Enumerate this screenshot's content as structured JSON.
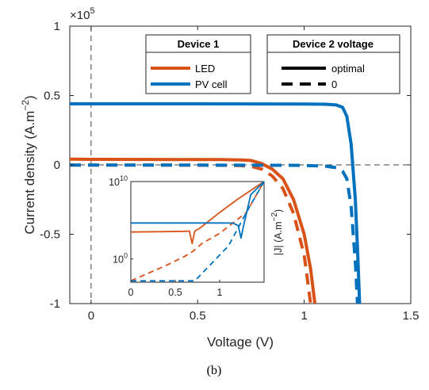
{
  "chart_data": {
    "type": "line",
    "xlabel": "Voltage (V)",
    "ylabel": "Current density (A.m",
    "ylabel_exp": "−2",
    "ylabel_end": ")",
    "y_multiplier": "×10",
    "y_multiplier_exp": "5",
    "xlim": [
      -0.1,
      1.5
    ],
    "ylim": [
      -100000,
      100000
    ],
    "x_ticks": [
      0,
      0.5,
      1,
      1.5
    ],
    "x_tick_labels": [
      "0",
      "0.5",
      "1",
      "1.5"
    ],
    "y_ticks": [
      -100000,
      -50000,
      0,
      50000,
      100000
    ],
    "y_tick_labels": [
      "-1",
      "-0.5",
      "0",
      "0.5",
      "1"
    ],
    "reference_lines": {
      "x": 0,
      "y": 0,
      "style": "dashed"
    },
    "series": [
      {
        "name": "LED",
        "device2_voltage": "optimal",
        "style": "solid",
        "x": [
          -0.1,
          0.0,
          0.4,
          0.6,
          0.7,
          0.75,
          0.8,
          0.85,
          0.9,
          0.95,
          1.0,
          1.03,
          1.05
        ],
        "y": [
          4200,
          4000,
          3900,
          3800,
          3600,
          3200,
          1000,
          -3000,
          -10000,
          -25000,
          -50000,
          -75000,
          -100000
        ]
      },
      {
        "name": "LED",
        "device2_voltage": "0",
        "style": "dashed",
        "x": [
          -0.1,
          0.0,
          0.4,
          0.6,
          0.7,
          0.75,
          0.8,
          0.85,
          0.9,
          0.95,
          1.0,
          1.03
        ],
        "y": [
          -200,
          -200,
          -200,
          -300,
          -500,
          -1000,
          -3000,
          -8000,
          -17000,
          -35000,
          -65000,
          -100000
        ]
      },
      {
        "name": "PV cell",
        "device2_voltage": "optimal",
        "style": "solid",
        "x": [
          -0.1,
          0.0,
          0.5,
          1.0,
          1.1,
          1.15,
          1.18,
          1.2,
          1.22,
          1.24,
          1.25,
          1.26
        ],
        "y": [
          44000,
          44000,
          44000,
          43900,
          43700,
          43200,
          41500,
          35000,
          15000,
          -25000,
          -60000,
          -100000
        ]
      },
      {
        "name": "PV cell",
        "device2_voltage": "0",
        "style": "dashed",
        "x": [
          -0.1,
          0.0,
          0.5,
          0.9,
          1.0,
          1.1,
          1.15,
          1.18,
          1.2,
          1.22,
          1.24,
          1.25
        ],
        "y": [
          -200,
          -200,
          -200,
          -300,
          -400,
          -900,
          -2000,
          -4500,
          -10000,
          -30000,
          -70000,
          -100000
        ]
      }
    ],
    "legend_device": {
      "title": "Device 1",
      "entries": [
        "LED",
        "PV cell"
      ],
      "colors": [
        "#D95319",
        "#0072BD"
      ]
    },
    "legend_voltage": {
      "title": "Device 2 voltage",
      "entries": [
        "optimal",
        "0"
      ],
      "styles": [
        "solid",
        "dashed"
      ]
    },
    "inset": {
      "type": "line",
      "ylabel": "|J| (A.m",
      "ylabel_exp": "−2",
      "ylabel_end": ")",
      "yscale": "log",
      "xlim": [
        0,
        1.5
      ],
      "ylim": [
        0.001,
        10000000000.0
      ],
      "x_ticks": [
        0,
        0.5,
        1
      ],
      "x_tick_labels": [
        "0",
        "0.5",
        "1"
      ],
      "y_ticks": [
        1,
        10000000000.0
      ],
      "y_tick_base": "10",
      "y_tick_exps": [
        "0",
        "10"
      ],
      "series": [
        {
          "name": "LED",
          "device2_voltage": "optimal",
          "style": "solid",
          "x": [
            0,
            0.4,
            0.6,
            0.66,
            0.69,
            0.72,
            0.78,
            1.0,
            1.2,
            1.5
          ],
          "y": [
            3000,
            3400,
            3700,
            4000,
            100,
            4000,
            10000,
            1000000.0,
            50000000.0,
            10000000000.0
          ]
        },
        {
          "name": "LED",
          "device2_voltage": "0",
          "style": "dashed",
          "x": [
            0,
            0.4,
            0.6,
            0.7,
            0.8,
            1.0,
            1.3,
            1.5
          ],
          "y": [
            0.0015,
            0.15,
            2,
            10,
            100,
            2000,
            1000000.0,
            10000000000.0
          ]
        },
        {
          "name": "PV cell",
          "device2_voltage": "optimal",
          "style": "solid",
          "x": [
            0,
            0.5,
            1.0,
            1.15,
            1.21,
            1.24,
            1.27,
            1.35,
            1.5
          ],
          "y": [
            44000,
            44000,
            44000,
            43000,
            20000,
            500,
            20000,
            200000000.0,
            10000000000.0
          ]
        },
        {
          "name": "PV cell",
          "device2_voltage": "0",
          "style": "dashed",
          "x": [
            0,
            0.7,
            0.72,
            0.9,
            1.1,
            1.3,
            1.5
          ],
          "y": [
            0.0015,
            0.0015,
            0.0015,
            0.2,
            50,
            1000000.0,
            10000000000.0
          ]
        }
      ]
    },
    "colors": {
      "LED": "#D95319",
      "PV cell": "#0072BD",
      "axis": "#262626",
      "reference": "#404040"
    }
  },
  "caption": "(b)"
}
